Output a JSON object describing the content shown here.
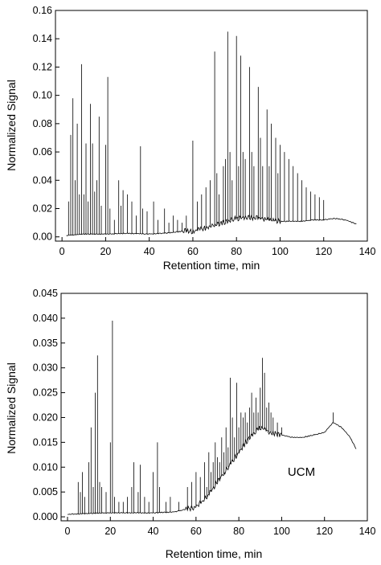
{
  "chart_data": [
    {
      "type": "line",
      "xlabel": "Retention time, min",
      "ylabel": "Normalized Signal",
      "xlim": [
        -3,
        140
      ],
      "ylim": [
        -0.003,
        0.16
      ],
      "x_ticks": [
        0,
        20,
        40,
        60,
        80,
        100,
        120,
        140
      ],
      "x_tick_labels": [
        "0",
        "20",
        "40",
        "60",
        "80",
        "100",
        "120",
        "140"
      ],
      "y_ticks": [
        0.0,
        0.02,
        0.04,
        0.06,
        0.08,
        0.1,
        0.12,
        0.14,
        0.16
      ],
      "y_tick_labels": [
        "0.00",
        "0.02",
        "0.04",
        "0.06",
        "0.08",
        "0.10",
        "0.12",
        "0.14",
        "0.16"
      ],
      "grid": false,
      "series_color": "#000000",
      "baseline": {
        "x": [
          2,
          10,
          20,
          30,
          40,
          50,
          55,
          60,
          65,
          70,
          75,
          80,
          85,
          90,
          95,
          100,
          105,
          110,
          115,
          120,
          125,
          130,
          135
        ],
        "y": [
          0.001,
          0.002,
          0.002,
          0.0025,
          0.002,
          0.003,
          0.004,
          0.004,
          0.006,
          0.008,
          0.011,
          0.013,
          0.014,
          0.013,
          0.012,
          0.011,
          0.011,
          0.011,
          0.012,
          0.012,
          0.013,
          0.012,
          0.009
        ]
      },
      "peaks": {
        "x": [
          3,
          4,
          5,
          6,
          7,
          8,
          9,
          10,
          11,
          12,
          13,
          14,
          15,
          16,
          17,
          18,
          20,
          21,
          22,
          24,
          26,
          27,
          28,
          30,
          32,
          34,
          36,
          37,
          39,
          42,
          44,
          47,
          49,
          51,
          53,
          55,
          57,
          60,
          62,
          64,
          66,
          68,
          70,
          71,
          72,
          74,
          75,
          76,
          77,
          78,
          80,
          81,
          82,
          83,
          84,
          86,
          87,
          88,
          90,
          91,
          92,
          94,
          95,
          96,
          98,
          99,
          100,
          102,
          104,
          106,
          108,
          110,
          112,
          114,
          116,
          118,
          120
        ],
        "y": [
          0.025,
          0.072,
          0.098,
          0.04,
          0.08,
          0.03,
          0.122,
          0.03,
          0.066,
          0.025,
          0.094,
          0.066,
          0.032,
          0.04,
          0.085,
          0.022,
          0.065,
          0.113,
          0.02,
          0.012,
          0.04,
          0.022,
          0.033,
          0.03,
          0.025,
          0.015,
          0.064,
          0.02,
          0.018,
          0.025,
          0.012,
          0.02,
          0.01,
          0.015,
          0.012,
          0.01,
          0.015,
          0.068,
          0.025,
          0.03,
          0.035,
          0.04,
          0.131,
          0.045,
          0.03,
          0.05,
          0.055,
          0.145,
          0.06,
          0.04,
          0.142,
          0.05,
          0.128,
          0.06,
          0.055,
          0.12,
          0.06,
          0.05,
          0.106,
          0.07,
          0.05,
          0.09,
          0.05,
          0.08,
          0.07,
          0.045,
          0.065,
          0.06,
          0.055,
          0.05,
          0.045,
          0.04,
          0.035,
          0.032,
          0.03,
          0.028,
          0.026
        ]
      }
    },
    {
      "type": "line",
      "xlabel": "Retention time, min",
      "ylabel": "Normalized Signal",
      "xlim": [
        -3,
        140
      ],
      "ylim": [
        -0.0008,
        0.045
      ],
      "x_ticks": [
        0,
        20,
        40,
        60,
        80,
        100,
        120,
        140
      ],
      "x_tick_labels": [
        "0",
        "20",
        "40",
        "60",
        "80",
        "100",
        "120",
        "140"
      ],
      "y_ticks": [
        0.0,
        0.005,
        0.01,
        0.015,
        0.02,
        0.025,
        0.03,
        0.035,
        0.04,
        0.045
      ],
      "y_tick_labels": [
        "0.000",
        "0.005",
        "0.010",
        "0.015",
        "0.020",
        "0.025",
        "0.030",
        "0.035",
        "0.040",
        "0.045"
      ],
      "grid": false,
      "series_color": "#000000",
      "annotation": {
        "text": "UCM",
        "x": 104,
        "y": 0.0095
      },
      "baseline": {
        "x": [
          0,
          10,
          20,
          30,
          40,
          50,
          55,
          60,
          65,
          70,
          75,
          80,
          85,
          90,
          95,
          100,
          105,
          110,
          115,
          120,
          124,
          128,
          132,
          135
        ],
        "y": [
          0.0005,
          0.0007,
          0.0008,
          0.0008,
          0.0008,
          0.001,
          0.0015,
          0.002,
          0.004,
          0.007,
          0.01,
          0.013,
          0.016,
          0.018,
          0.017,
          0.0165,
          0.016,
          0.016,
          0.0165,
          0.017,
          0.019,
          0.018,
          0.016,
          0.0135
        ]
      },
      "peaks": {
        "x": [
          5,
          6,
          7,
          8,
          10,
          11,
          12,
          13,
          14,
          15,
          16,
          18,
          20,
          21,
          22,
          24,
          26,
          28,
          30,
          31,
          33,
          34,
          36,
          38,
          40,
          42,
          43,
          46,
          48,
          52,
          56,
          58,
          60,
          62,
          64,
          65,
          66,
          67,
          68,
          69,
          70,
          71,
          72,
          73,
          74,
          75,
          76,
          77,
          78,
          79,
          80,
          81,
          82,
          83,
          84,
          85,
          86,
          87,
          88,
          89,
          90,
          91,
          92,
          93,
          94,
          95,
          96,
          98,
          100,
          124
        ],
        "y": [
          0.007,
          0.005,
          0.009,
          0.004,
          0.011,
          0.018,
          0.006,
          0.025,
          0.0325,
          0.007,
          0.006,
          0.005,
          0.015,
          0.0395,
          0.004,
          0.003,
          0.003,
          0.004,
          0.006,
          0.011,
          0.005,
          0.0105,
          0.004,
          0.003,
          0.009,
          0.015,
          0.006,
          0.003,
          0.004,
          0.003,
          0.006,
          0.007,
          0.009,
          0.008,
          0.011,
          0.006,
          0.013,
          0.009,
          0.011,
          0.015,
          0.012,
          0.011,
          0.016,
          0.013,
          0.018,
          0.014,
          0.028,
          0.02,
          0.016,
          0.027,
          0.018,
          0.021,
          0.02,
          0.021,
          0.019,
          0.022,
          0.025,
          0.021,
          0.024,
          0.021,
          0.026,
          0.032,
          0.029,
          0.022,
          0.023,
          0.021,
          0.02,
          0.019,
          0.018,
          0.021
        ]
      }
    }
  ]
}
